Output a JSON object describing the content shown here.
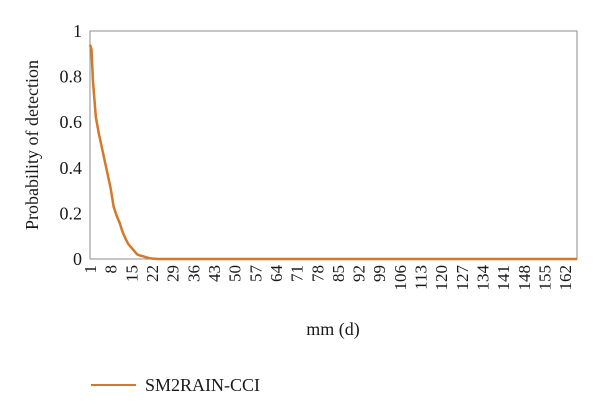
{
  "chart_data": {
    "type": "line",
    "title": "",
    "xlabel": "mm (d)",
    "ylabel": "Probability of detection",
    "x_tick_labels": [
      "1",
      "8",
      "15",
      "22",
      "29",
      "36",
      "43",
      "50",
      "57",
      "64",
      "71",
      "78",
      "85",
      "92",
      "99",
      "106",
      "113",
      "120",
      "127",
      "134",
      "141",
      "148",
      "155",
      "162"
    ],
    "y_tick_labels": [
      "0",
      "0.2",
      "0.4",
      "0.6",
      "0.8",
      "1"
    ],
    "xlim": [
      1,
      166
    ],
    "ylim": [
      0,
      1
    ],
    "grid": false,
    "legend_position": "bottom-left",
    "series": [
      {
        "name": "SM2RAIN-CCI",
        "color": "#d4782a",
        "x": [
          1,
          1.5,
          2,
          3,
          4,
          5,
          6,
          7,
          8,
          9,
          10,
          11,
          12,
          13,
          14,
          15,
          16,
          17,
          18,
          19,
          20,
          21,
          22,
          23,
          24,
          25,
          30,
          40,
          50,
          60,
          80,
          100,
          120,
          140,
          160,
          166
        ],
        "y": [
          0.94,
          0.92,
          0.78,
          0.62,
          0.55,
          0.49,
          0.43,
          0.37,
          0.31,
          0.23,
          0.19,
          0.16,
          0.12,
          0.09,
          0.065,
          0.05,
          0.035,
          0.02,
          0.015,
          0.012,
          0.008,
          0.004,
          0.002,
          0.001,
          0,
          0,
          0,
          0,
          0,
          0,
          0,
          0,
          0,
          0,
          0,
          0
        ]
      }
    ]
  }
}
